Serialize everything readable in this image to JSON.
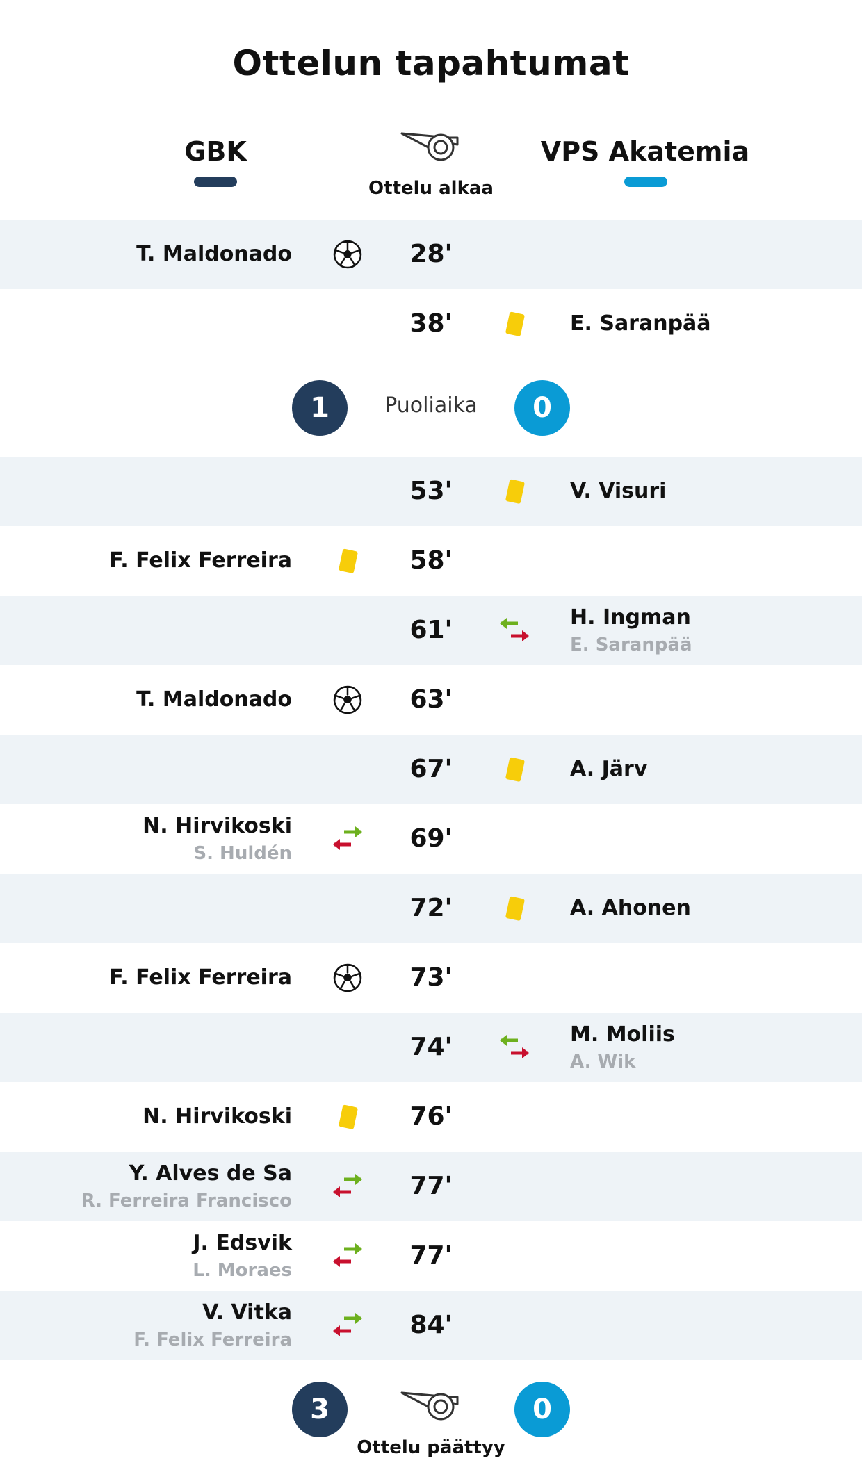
{
  "title": "Ottelun tapahtumat",
  "teams": {
    "home": {
      "name": "GBK",
      "color": "#233d5c"
    },
    "away": {
      "name": "VPS Akatemia",
      "color": "#0a9bd5"
    }
  },
  "start_label": "Ottelu alkaa",
  "halftime": {
    "label": "Puoliaika",
    "home": "1",
    "away": "0"
  },
  "fulltime": {
    "label": "Ottelu päättyy",
    "home": "3",
    "away": "0"
  },
  "events": [
    {
      "minute": "28'",
      "side": "home",
      "type": "goal-icon",
      "player": "T. Maldonado"
    },
    {
      "minute": "38'",
      "side": "away",
      "type": "yellow-card-icon",
      "player": "E. Saranpää"
    },
    {
      "minute": "53'",
      "side": "away",
      "type": "yellow-card-icon",
      "player": "V. Visuri"
    },
    {
      "minute": "58'",
      "side": "home",
      "type": "yellow-card-icon",
      "player": "F. Felix Ferreira"
    },
    {
      "minute": "61'",
      "side": "away",
      "type": "substitution-icon",
      "player": "H. Ingman",
      "player_out": "E. Saranpää"
    },
    {
      "minute": "63'",
      "side": "home",
      "type": "goal-icon",
      "player": "T. Maldonado"
    },
    {
      "minute": "67'",
      "side": "away",
      "type": "yellow-card-icon",
      "player": "A. Järv"
    },
    {
      "minute": "69'",
      "side": "home",
      "type": "substitution-icon",
      "player": "N. Hirvikoski",
      "player_out": "S. Huldén"
    },
    {
      "minute": "72'",
      "side": "away",
      "type": "yellow-card-icon",
      "player": "A. Ahonen"
    },
    {
      "minute": "73'",
      "side": "home",
      "type": "goal-icon",
      "player": "F. Felix Ferreira"
    },
    {
      "minute": "74'",
      "side": "away",
      "type": "substitution-icon",
      "player": "M. Moliis",
      "player_out": "A. Wik"
    },
    {
      "minute": "76'",
      "side": "home",
      "type": "yellow-card-icon",
      "player": "N. Hirvikoski"
    },
    {
      "minute": "77'",
      "side": "home",
      "type": "substitution-icon",
      "player": "Y. Alves de Sa",
      "player_out": "R. Ferreira Francisco"
    },
    {
      "minute": "77'",
      "side": "home",
      "type": "substitution-icon",
      "player": "J. Edsvik",
      "player_out": "L. Moraes"
    },
    {
      "minute": "84'",
      "side": "home",
      "type": "substitution-icon",
      "player": "V. Vitka",
      "player_out": "F. Felix Ferreira"
    }
  ]
}
